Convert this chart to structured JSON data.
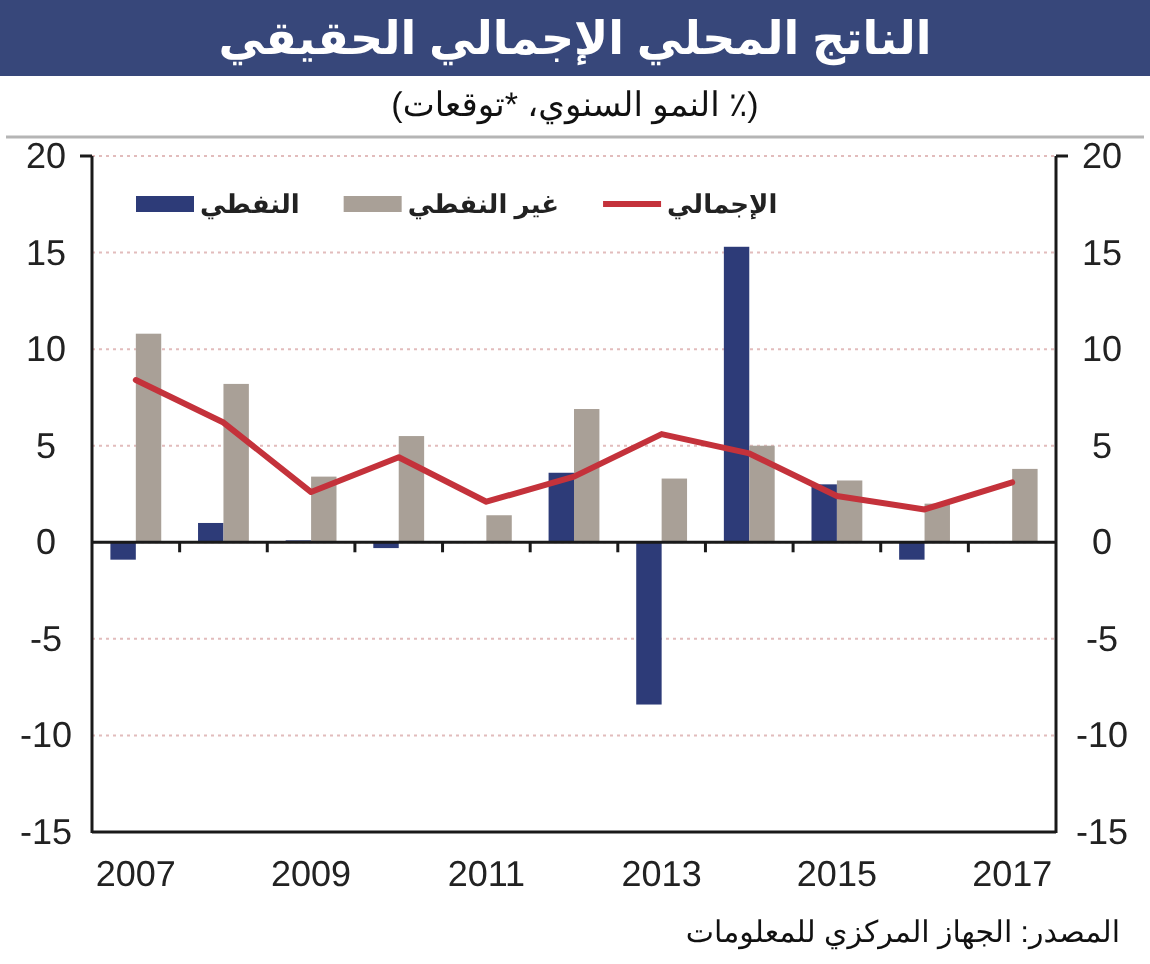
{
  "chart_data": {
    "type": "bar",
    "title": "الناتج المحلي الإجمالي الحقيقي",
    "subtitle": "(٪ النمو السنوي، *توقعات)",
    "categories": [
      "2007",
      null,
      "2009",
      null,
      "2011",
      null,
      "2013",
      null,
      "2015",
      null,
      "2017"
    ],
    "series": [
      {
        "name": "النفطي",
        "color": "#2d3b78",
        "values": [
          -0.9,
          1.0,
          0.1,
          -0.3,
          null,
          3.6,
          -8.4,
          15.3,
          3.0,
          -0.9,
          null
        ]
      },
      {
        "name": "غير النفطي",
        "color": "#a9a097",
        "values": [
          10.8,
          8.2,
          3.4,
          5.5,
          1.4,
          6.9,
          3.3,
          5.0,
          3.2,
          2.0,
          3.8
        ]
      },
      {
        "name": "الإجمالي",
        "type": "line",
        "color": "#c4323b",
        "values": [
          8.4,
          6.2,
          2.6,
          4.4,
          2.1,
          3.4,
          5.6,
          4.6,
          2.4,
          1.7,
          3.1
        ]
      }
    ],
    "ylim": [
      -15,
      20
    ],
    "yticks": [
      -15,
      -10,
      -5,
      0,
      5,
      10,
      15,
      20
    ],
    "y2lim": [
      -15,
      20
    ],
    "y2ticks": [
      -15,
      -10,
      -5,
      0,
      5,
      10,
      15,
      20
    ],
    "grid": "y",
    "legend": "top",
    "annotations": [
      "المصدر: الجهاز المركزي للمعلومات"
    ]
  }
}
